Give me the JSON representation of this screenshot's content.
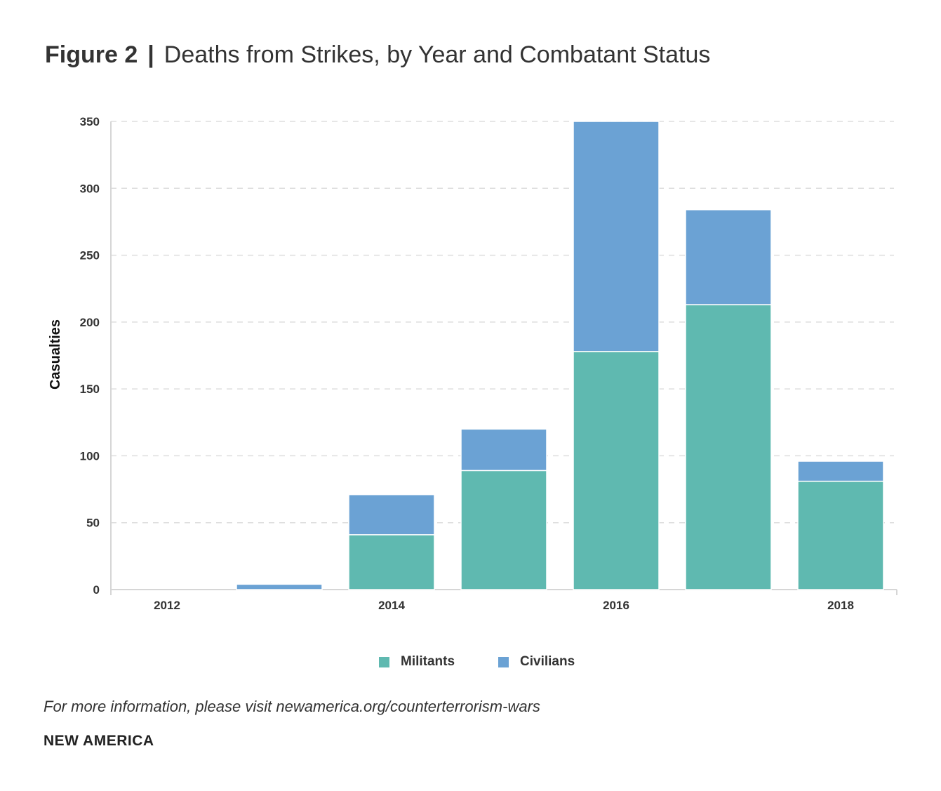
{
  "header": {
    "figure_label": "Figure 2",
    "separator": "|",
    "title": "Deaths from Strikes, by Year and Combatant Status"
  },
  "chart_data": {
    "type": "bar",
    "stacked": true,
    "categories": [
      "2012",
      "2013",
      "2014",
      "2015",
      "2016",
      "2017",
      "2018"
    ],
    "x_tick_labels": [
      "2012",
      "",
      "2014",
      "",
      "2016",
      "",
      "2018"
    ],
    "series": [
      {
        "name": "Militants",
        "color": "#5fb9b0",
        "values": [
          0,
          0,
          41,
          89,
          178,
          213,
          81
        ]
      },
      {
        "name": "Civilians",
        "color": "#6ba2d4",
        "values": [
          0,
          4,
          30,
          31,
          172,
          71,
          15
        ]
      }
    ],
    "ylabel": "Casualties",
    "xlabel": "",
    "ylim": [
      0,
      350
    ],
    "yticks": [
      0,
      50,
      100,
      150,
      200,
      250,
      300,
      350
    ],
    "grid": true,
    "legend_position": "bottom-center"
  },
  "legend": {
    "items": [
      {
        "label": "Militants",
        "color": "#5fb9b0"
      },
      {
        "label": "Civilians",
        "color": "#6ba2d4"
      }
    ]
  },
  "footer": {
    "note": "For more information, please visit newamerica.org/counterterrorism-wars",
    "brand": "NEW AMERICA"
  }
}
